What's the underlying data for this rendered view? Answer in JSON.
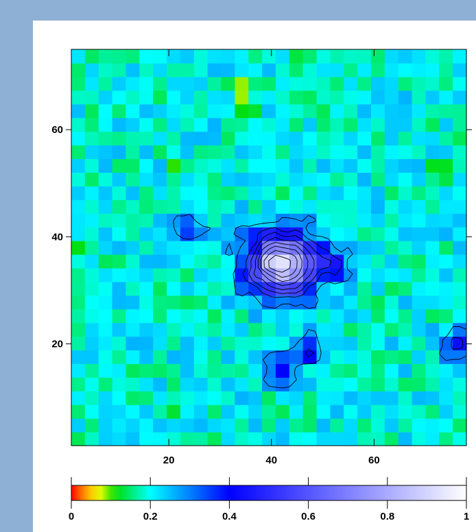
{
  "colors": {
    "background": "#8eb0d4",
    "panel": "#ffffff",
    "colormap": [
      "#ff0000",
      "#ffb000",
      "#ffff00",
      "#00dd00",
      "#00ffff",
      "#0000ff",
      "#ffffff"
    ]
  },
  "chart_data": {
    "type": "heatmap",
    "title": "",
    "xlabel": "",
    "ylabel": "",
    "xlim": [
      1,
      78
    ],
    "ylim": [
      1,
      75
    ],
    "x_ticks": [
      20,
      40,
      60
    ],
    "y_ticks": [
      20,
      40,
      60
    ],
    "colorbar": {
      "range": [
        0,
        1
      ],
      "ticks": [
        0,
        0.2,
        0.4,
        0.6,
        0.8,
        1
      ],
      "tick_labels": [
        "0",
        "0.2",
        "0.4",
        "0.6",
        "0.8",
        "1"
      ]
    },
    "peak": {
      "x": 42,
      "y": 35,
      "value": 0.95
    },
    "hotspots": [
      {
        "x": 35,
        "y": 65,
        "value": 0.0
      },
      {
        "x": 35,
        "y": 68,
        "value": 0.05
      },
      {
        "x": 22,
        "y": 53,
        "value": 0.06
      },
      {
        "x": 73,
        "y": 53,
        "value": 0.07
      },
      {
        "x": 20,
        "y": 7,
        "value": 0.09
      },
      {
        "x": 44,
        "y": 72,
        "value": 0.09
      },
      {
        "x": 3,
        "y": 38,
        "value": 0.1
      }
    ],
    "secondary_minima": [
      {
        "x": 76,
        "y": 20,
        "value": 0.42
      },
      {
        "x": 47,
        "y": 19,
        "value": 0.38
      },
      {
        "x": 52,
        "y": 35,
        "value": 0.38
      },
      {
        "x": 24,
        "y": 42,
        "value": 0.36
      },
      {
        "x": 42,
        "y": 15,
        "value": 0.36
      }
    ],
    "background_value": 0.2,
    "contour_levels": [
      0.28,
      0.4,
      0.48,
      0.56,
      0.64,
      0.72,
      0.8,
      0.88
    ]
  }
}
